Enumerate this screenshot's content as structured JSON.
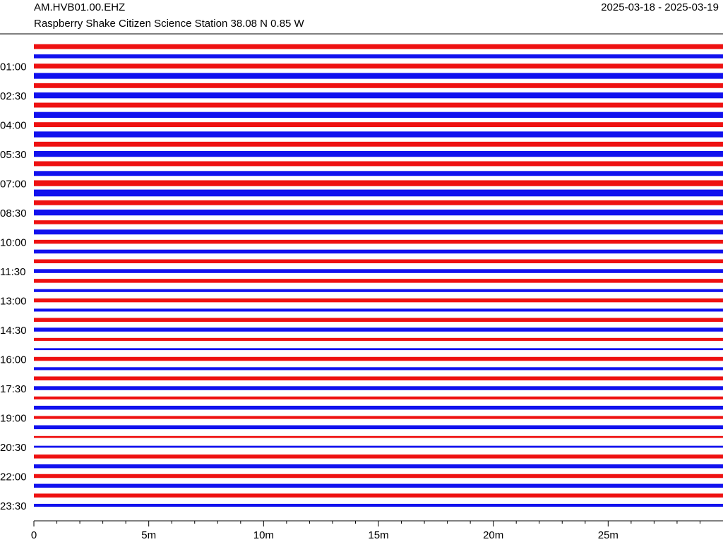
{
  "chart_data": {
    "type": "helicorder",
    "title": "AM.HVB01.00.EHZ",
    "subtitle": "Raspberry Shake Citizen Science Station  38.08 N 0.85 W",
    "date_range": "2025-03-18 - 2025-03-19",
    "categories": [
      null,
      null,
      "01:00",
      null,
      null,
      "02:30",
      null,
      null,
      "04:00",
      null,
      null,
      "05:30",
      null,
      null,
      "07:00",
      null,
      null,
      "08:30",
      null,
      null,
      "10:00",
      null,
      null,
      "11:30",
      null,
      null,
      "13:00",
      null,
      null,
      "14:30",
      null,
      null,
      "16:00",
      null,
      null,
      "17:30",
      null,
      null,
      "19:00",
      null,
      null,
      "20:30",
      null,
      null,
      "22:00",
      null,
      null,
      "23:30"
    ],
    "values": [
      5,
      4,
      5,
      6,
      5,
      6,
      5,
      6,
      5,
      6,
      5,
      6,
      5,
      5,
      6,
      7,
      5,
      6,
      4,
      5,
      4,
      4,
      4,
      4,
      4,
      3,
      4,
      3,
      4,
      4,
      3,
      2,
      4,
      3,
      4,
      4,
      3,
      4,
      3,
      4,
      2,
      2,
      4,
      4,
      4,
      4,
      4,
      3
    ],
    "ylim": [
      0,
      10
    ],
    "colors": [
      "#ee1111",
      "#1111ee"
    ],
    "xlim": [
      0,
      30
    ],
    "xticks": [
      0,
      {
        "value": 5,
        "label": "5m"
      },
      {
        "value": 10,
        "label": "10m"
      },
      {
        "value": 15,
        "label": "15m"
      },
      {
        "value": 20,
        "label": "20m"
      },
      {
        "value": 25,
        "label": "25m"
      }
    ],
    "xminorticks": [
      1,
      2,
      3,
      4,
      6,
      7,
      8,
      9,
      11,
      12,
      13,
      14,
      16,
      17,
      18,
      19,
      21,
      22,
      23,
      24,
      26,
      27,
      28,
      29
    ]
  }
}
